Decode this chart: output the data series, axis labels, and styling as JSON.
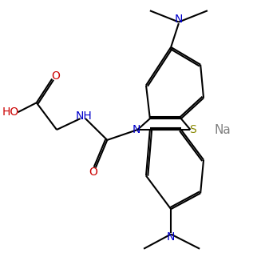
{
  "bg_color": "#ffffff",
  "lw": 1.5,
  "fs": 10,
  "fw": 3.32,
  "fh": 3.26,
  "dpi": 100,
  "colors": {
    "N": "#0000cc",
    "O": "#cc0000",
    "S": "#888800",
    "Na": "#808080",
    "bond": "#000000"
  },
  "xlim": [
    0,
    10
  ],
  "ylim": [
    0,
    10
  ]
}
